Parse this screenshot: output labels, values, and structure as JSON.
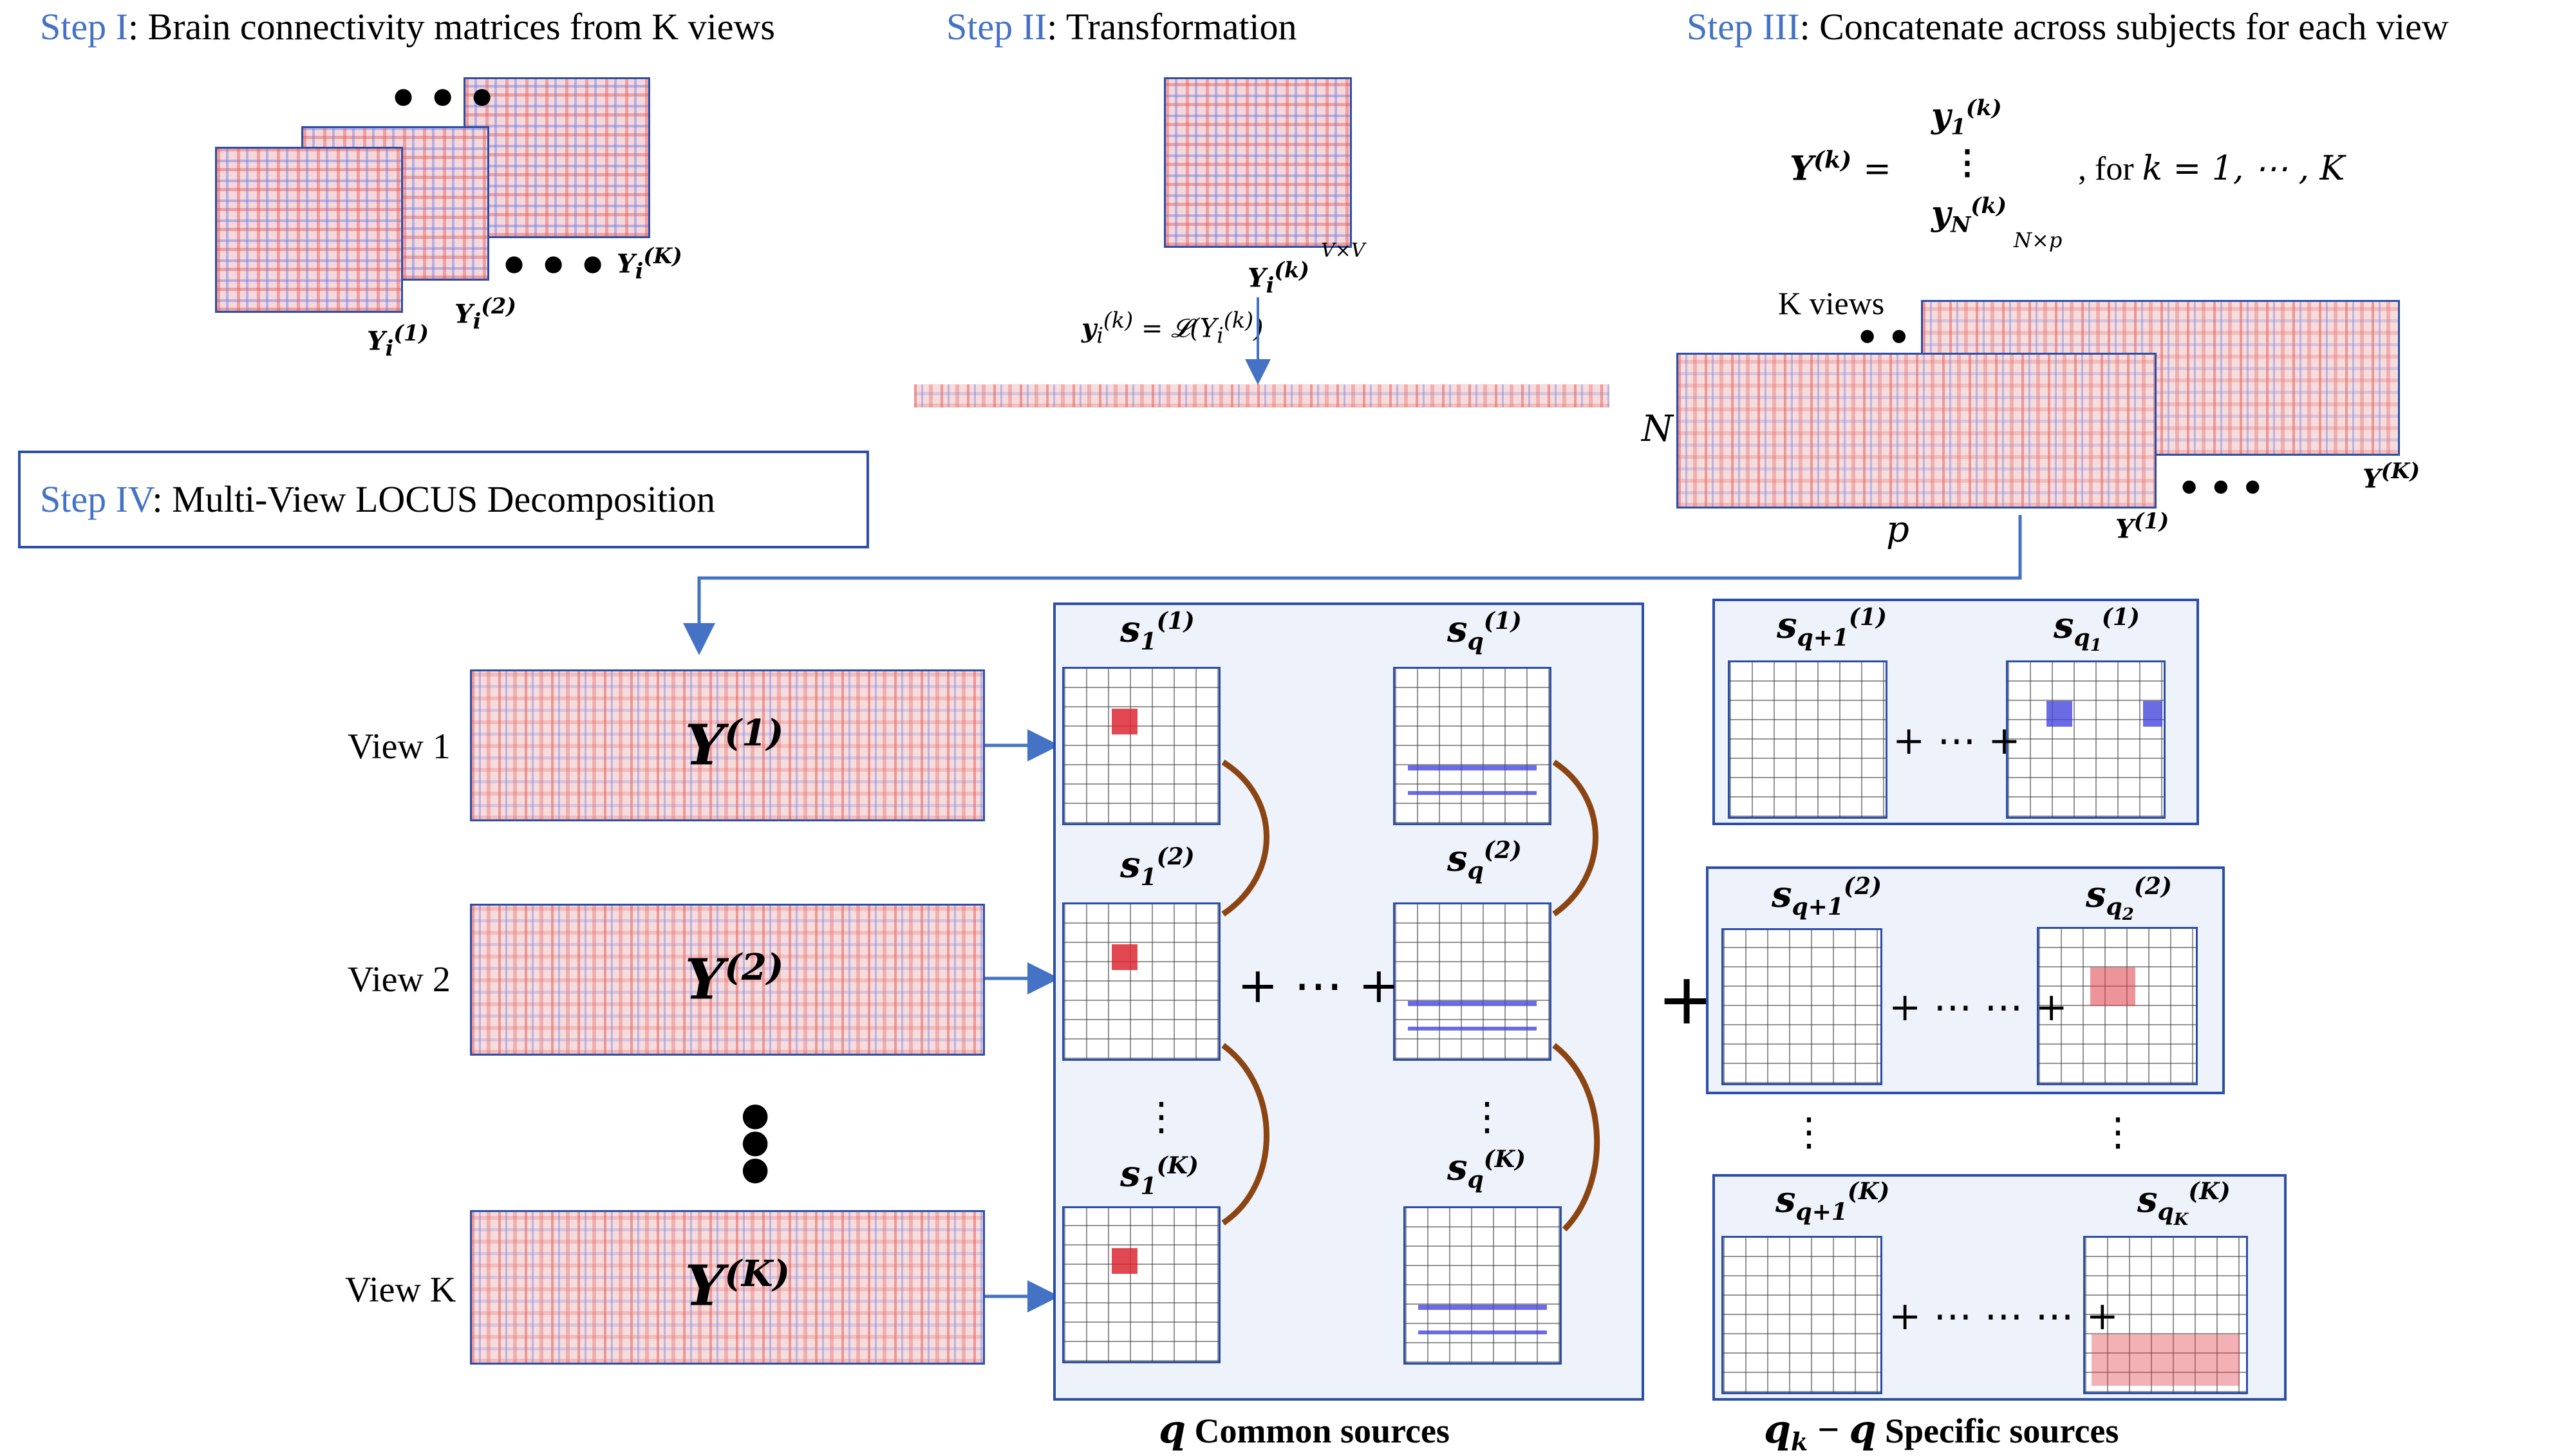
{
  "steps": {
    "step1": {
      "tag": "Step I",
      "text": ": Brain connectivity matrices from K views"
    },
    "step2": {
      "tag": "Step II",
      "text": ": Transformation"
    },
    "step3": {
      "tag": "Step III",
      "text": ": Concatenate across subjects for each view"
    },
    "step4": {
      "tag": "Step IV",
      "text": ": Multi-View LOCUS Decomposition"
    }
  },
  "step1_labels": {
    "y1": "Y",
    "y1_sub": "i",
    "y1_sup": "(1)",
    "y2": "Y",
    "y2_sub": "i",
    "y2_sup": "(2)",
    "yk": "Y",
    "yk_sub": "i",
    "yk_sup": "(K)"
  },
  "step2_labels": {
    "mat": "Y",
    "mat_sub": "i",
    "mat_sup": "(k)",
    "dim": "V×V",
    "eq": "y",
    "eq_sub": "i",
    "eq_sup": "(k)",
    "eq_rest": " = 𝓛(Y",
    "eq_rest_sub": "i",
    "eq_rest_sup": "(k)",
    "eq_close": ")"
  },
  "step3_labels": {
    "lhs": "Y",
    "lhs_sup": "(k)",
    "eq": "=",
    "row1": "y",
    "row1_sub": "1",
    "row1_sup": "(k)",
    "vdots": "⋮",
    "rowN": "y",
    "rowN_sub": "N",
    "rowN_sup": "(k)",
    "dims": "N×p",
    "for": ", for ",
    "k_range": "k = 1, ⋯ , K",
    "kviews": "K views",
    "n": "N",
    "p": "p",
    "y1": "Y",
    "y1_sup": "(1)",
    "yk": "Y",
    "yk_sup": "(K)"
  },
  "views": [
    {
      "label": "View 1",
      "y": "Y",
      "sup": "(1)"
    },
    {
      "label": "View 2",
      "y": "Y",
      "sup": "(2)"
    },
    {
      "label": "View K",
      "y": "Y",
      "sup": "(K)"
    }
  ],
  "common": {
    "s11": {
      "s": "s",
      "sub": "1",
      "sup": "(1)"
    },
    "s12": {
      "s": "s",
      "sub": "1",
      "sup": "(2)"
    },
    "s1k": {
      "s": "s",
      "sub": "1",
      "sup": "(K)"
    },
    "sq1": {
      "s": "s",
      "sub": "q",
      "sup": "(1)"
    },
    "sq2": {
      "s": "s",
      "sub": "q",
      "sup": "(2)"
    },
    "sqk": {
      "s": "s",
      "sub": "q",
      "sup": "(K)"
    },
    "plus": "+ ⋯ +",
    "caption_q": "q",
    "caption": " Common sources"
  },
  "specific": {
    "r1a": {
      "s": "s",
      "sub": "q+1",
      "sup": "(1)"
    },
    "r1b": {
      "s": "s",
      "sub": "q",
      "subsub": "1",
      "sup": "(1)"
    },
    "r2a": {
      "s": "s",
      "sub": "q+1",
      "sup": "(2)"
    },
    "r2b": {
      "s": "s",
      "sub": "q",
      "subsub": "2",
      "sup": "(2)"
    },
    "r3a": {
      "s": "s",
      "sub": "q+1",
      "sup": "(K)"
    },
    "r3b": {
      "s": "s",
      "sub": "q",
      "subsub": "K",
      "sup": "(K)"
    },
    "plus1": "+ ⋯ +",
    "plus2": "+ ⋯ ⋯ +",
    "plus3": "+ ⋯ ⋯ ⋯ +",
    "caption_q": "q",
    "caption_sub": "k",
    "caption_minus": " − ",
    "caption_q2": "q",
    "caption": "  Specific sources"
  },
  "big_plus": "+",
  "colors": {
    "accent": "#4472c4",
    "border": "#2b4ea8",
    "arc": "#8b4513",
    "panel": "#eef2fa"
  }
}
